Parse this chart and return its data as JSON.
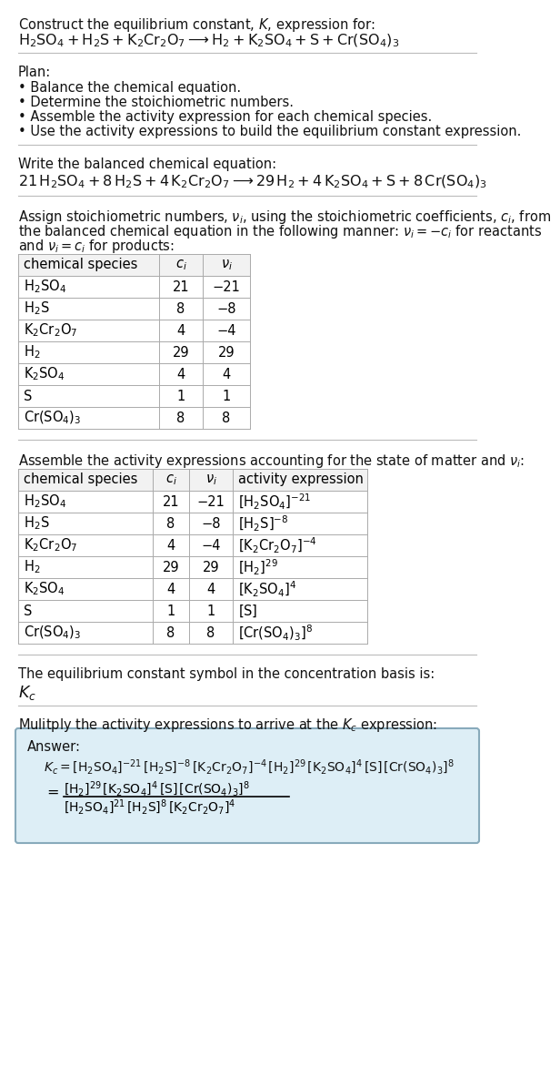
{
  "title_line1": "Construct the equilibrium constant, $K$, expression for:",
  "reaction_unbalanced": "$\\mathrm{H_2SO_4 + H_2S + K_2Cr_2O_7 \\longrightarrow H_2 + K_2SO_4 + S + Cr(SO_4)_3}$",
  "plan_header": "Plan:",
  "plan_items": [
    "\\u2022 Balance the chemical equation.",
    "\\u2022 Determine the stoichiometric numbers.",
    "\\u2022 Assemble the activity expression for each chemical species.",
    "\\u2022 Use the activity expressions to build the equilibrium constant expression."
  ],
  "balanced_header": "Write the balanced chemical equation:",
  "balanced_eq": "$\\mathrm{21\\,H_2SO_4 + 8\\,H_2S + 4\\,K_2Cr_2O_7 \\longrightarrow 29\\,H_2 + 4\\,K_2SO_4 + S + 8\\,Cr(SO_4)_3}$",
  "stoich_intro_lines": [
    "Assign stoichiometric numbers, $\\nu_i$, using the stoichiometric coefficients, $c_i$, from",
    "the balanced chemical equation in the following manner: $\\nu_i = -c_i$ for reactants",
    "and $\\nu_i = c_i$ for products:"
  ],
  "table1_headers": [
    "chemical species",
    "$c_i$",
    "$\\nu_i$"
  ],
  "table1_rows": [
    [
      "$\\mathrm{H_2SO_4}$",
      "21",
      "−21"
    ],
    [
      "$\\mathrm{H_2S}$",
      "8",
      "−8"
    ],
    [
      "$\\mathrm{K_2Cr_2O_7}$",
      "4",
      "−4"
    ],
    [
      "$\\mathrm{H_2}$",
      "29",
      "29"
    ],
    [
      "$\\mathrm{K_2SO_4}$",
      "4",
      "4"
    ],
    [
      "S",
      "1",
      "1"
    ],
    [
      "$\\mathrm{Cr(SO_4)_3}$",
      "8",
      "8"
    ]
  ],
  "assemble_intro": "Assemble the activity expressions accounting for the state of matter and $\\nu_i$:",
  "table2_headers": [
    "chemical species",
    "$c_i$",
    "$\\nu_i$",
    "activity expression"
  ],
  "table2_rows": [
    [
      "$\\mathrm{H_2SO_4}$",
      "21",
      "−21",
      "$[\\mathrm{H_2SO_4}]^{-21}$"
    ],
    [
      "$\\mathrm{H_2S}$",
      "8",
      "−8",
      "$[\\mathrm{H_2S}]^{-8}$"
    ],
    [
      "$\\mathrm{K_2Cr_2O_7}$",
      "4",
      "−4",
      "$[\\mathrm{K_2Cr_2O_7}]^{-4}$"
    ],
    [
      "$\\mathrm{H_2}$",
      "29",
      "29",
      "$[\\mathrm{H_2}]^{29}$"
    ],
    [
      "$\\mathrm{K_2SO_4}$",
      "4",
      "4",
      "$[\\mathrm{K_2SO_4}]^4$"
    ],
    [
      "S",
      "1",
      "1",
      "$[\\mathrm{S}]$"
    ],
    [
      "$\\mathrm{Cr(SO_4)_3}$",
      "8",
      "8",
      "$[\\mathrm{Cr(SO_4)_3}]^8$"
    ]
  ],
  "kc_text": "The equilibrium constant symbol in the concentration basis is:",
  "kc_symbol": "$K_c$",
  "multiply_text": "Mulitply the activity expressions to arrive at the $K_c$ expression:",
  "answer_label": "Answer:",
  "kc_line1": "$K_c = [\\mathrm{H_2SO_4}]^{-21}\\,[\\mathrm{H_2S}]^{-8}\\,[\\mathrm{K_2Cr_2O_7}]^{-4}\\,[\\mathrm{H_2}]^{29}\\,[\\mathrm{K_2SO_4}]^4\\,[\\mathrm{S}]\\,[\\mathrm{Cr(SO_4)_3}]^8$",
  "kc_line2_num": "$[\\mathrm{H_2}]^{29}\\,[\\mathrm{K_2SO_4}]^4\\,[\\mathrm{S}]\\,[\\mathrm{Cr(SO_4)_3}]^8$",
  "kc_line2_den": "$[\\mathrm{H_2SO_4}]^{21}\\,[\\mathrm{H_2S}]^8\\,[\\mathrm{K_2Cr_2O_7}]^4$",
  "bg_color": "#ffffff",
  "table_border_color": "#aaaaaa",
  "answer_box_facecolor": "#ddeef6",
  "answer_box_edgecolor": "#88aabb",
  "separator_color": "#bbbbbb",
  "font_size": 10.5
}
